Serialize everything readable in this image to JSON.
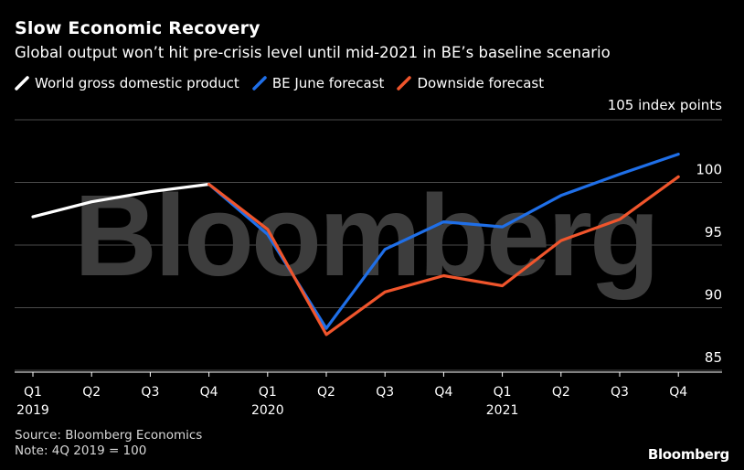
{
  "title": "Slow Economic Recovery",
  "subtitle": "Global output won’t hit pre-crisis level until mid-2021 in BE’s baseline scenario",
  "watermark": "Bloomberg",
  "source_line": "Source: Bloomberg Economics",
  "note_line": "Note: 4Q 2019 = 100",
  "brand": "Bloomberg",
  "colors": {
    "background": "#000000",
    "gdp": "#ffffff",
    "june_forecast": "#1f6fe8",
    "downside": "#f0552c",
    "gridline": "#4a4a4a",
    "watermark": "#3d3d3d"
  },
  "chart_data": {
    "type": "line",
    "title": "Slow Economic Recovery",
    "ylabel": "index points",
    "ylabel_top": "105 index points",
    "ylim": [
      85,
      105
    ],
    "yticks": [
      85,
      90,
      95,
      100,
      105
    ],
    "ytick_labels": [
      "85",
      "90",
      "95",
      "100",
      "105 index points"
    ],
    "grid": true,
    "y_axis_side": "right",
    "legend_position": "top-left",
    "categories": [
      "Q1",
      "Q2",
      "Q3",
      "Q4",
      "Q1",
      "Q2",
      "Q3",
      "Q4",
      "Q1",
      "Q2",
      "Q3",
      "Q4"
    ],
    "year_labels": [
      {
        "index": 0,
        "label": "2019"
      },
      {
        "index": 4,
        "label": "2020"
      },
      {
        "index": 8,
        "label": "2021"
      }
    ],
    "series": [
      {
        "name": "World gross domestic product",
        "color": "#ffffff",
        "values": [
          97.4,
          98.6,
          99.4,
          100.0,
          null,
          null,
          null,
          null,
          null,
          null,
          null,
          null
        ]
      },
      {
        "name": "BE June forecast",
        "color": "#1f6fe8",
        "values": [
          null,
          null,
          null,
          100.0,
          96.0,
          88.5,
          94.8,
          97.0,
          96.6,
          99.1,
          100.8,
          102.4
        ]
      },
      {
        "name": "Downside forecast",
        "color": "#f0552c",
        "values": [
          null,
          null,
          null,
          100.0,
          96.4,
          88.0,
          91.4,
          92.7,
          91.9,
          95.5,
          97.2,
          100.6
        ]
      }
    ]
  }
}
